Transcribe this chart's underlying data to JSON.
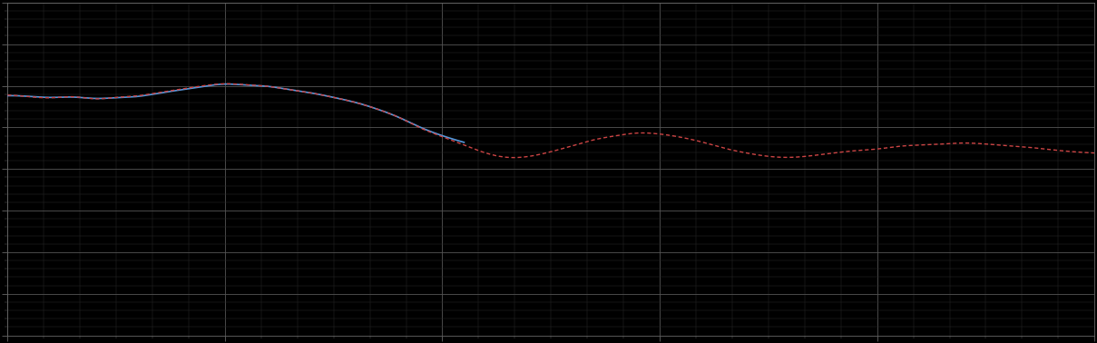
{
  "background_color": "#000000",
  "plot_bg_color": "#000000",
  "line1_color": "#5599dd",
  "line2_color": "#cc4444",
  "fig_width": 12.09,
  "fig_height": 3.78,
  "dpi": 100,
  "xlim": [
    0,
    1
  ],
  "ylim": [
    0,
    1
  ],
  "blue_x": [
    0.0,
    0.02,
    0.04,
    0.06,
    0.08,
    0.1,
    0.12,
    0.14,
    0.16,
    0.18,
    0.2,
    0.22,
    0.24,
    0.26,
    0.28,
    0.3,
    0.32,
    0.34,
    0.36,
    0.38,
    0.4,
    0.42
  ],
  "blue_y": [
    0.72,
    0.718,
    0.715,
    0.716,
    0.712,
    0.714,
    0.718,
    0.728,
    0.738,
    0.748,
    0.755,
    0.752,
    0.748,
    0.738,
    0.728,
    0.715,
    0.7,
    0.68,
    0.655,
    0.625,
    0.6,
    0.58
  ],
  "red_x": [
    0.0,
    0.02,
    0.04,
    0.06,
    0.08,
    0.1,
    0.12,
    0.14,
    0.16,
    0.18,
    0.2,
    0.22,
    0.24,
    0.26,
    0.28,
    0.3,
    0.32,
    0.34,
    0.36,
    0.38,
    0.4,
    0.42,
    0.44,
    0.46,
    0.48,
    0.5,
    0.52,
    0.54,
    0.56,
    0.58,
    0.6,
    0.62,
    0.64,
    0.66,
    0.68,
    0.7,
    0.72,
    0.74,
    0.76,
    0.78,
    0.8,
    0.82,
    0.84,
    0.86,
    0.88,
    0.9,
    0.92,
    0.94,
    0.96,
    0.98,
    1.0
  ],
  "red_y": [
    0.722,
    0.717,
    0.714,
    0.717,
    0.711,
    0.715,
    0.72,
    0.73,
    0.74,
    0.75,
    0.756,
    0.753,
    0.748,
    0.738,
    0.728,
    0.715,
    0.7,
    0.68,
    0.655,
    0.623,
    0.597,
    0.572,
    0.548,
    0.535,
    0.538,
    0.552,
    0.57,
    0.588,
    0.6,
    0.608,
    0.605,
    0.595,
    0.58,
    0.562,
    0.548,
    0.538,
    0.535,
    0.54,
    0.548,
    0.555,
    0.56,
    0.568,
    0.572,
    0.575,
    0.578,
    0.575,
    0.57,
    0.565,
    0.558,
    0.552,
    0.548
  ]
}
